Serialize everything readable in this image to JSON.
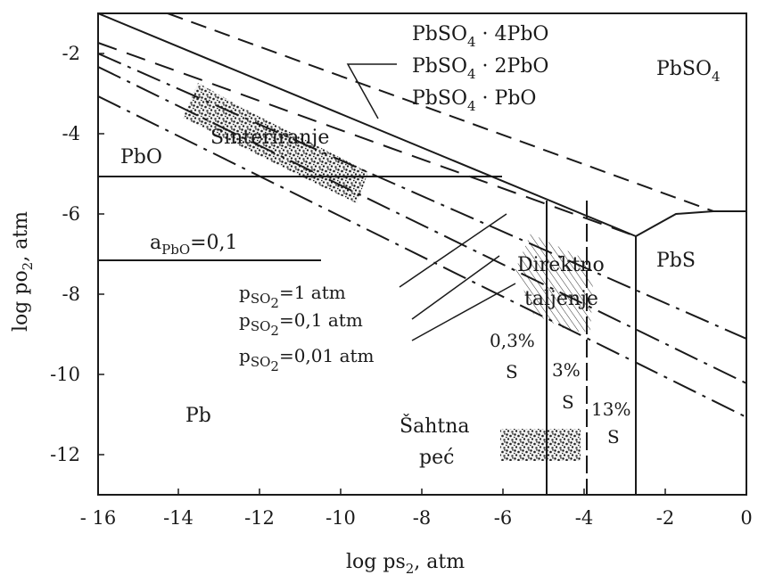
{
  "axes": {
    "x_title": "log ps",
    "x_title_sub": "2",
    "x_title_unit": ", atm",
    "y_title": "log po",
    "y_title_sub": "2",
    "y_title_unit": ", atm",
    "x_ticks": [
      "- 16",
      "-14",
      "-12",
      "-10",
      "-8",
      "-6",
      "-4",
      "-2",
      "0"
    ],
    "y_ticks": [
      "-2",
      "-4",
      "-6",
      "-8",
      "-10",
      "-12"
    ]
  },
  "phases": {
    "pbso4_4pbo": {
      "pre": "PbSO",
      "sub": "4",
      "post": " · 4PbO"
    },
    "pbso4_2pbo": {
      "pre": "PbSO",
      "sub": "4",
      "post": " · 2PbO"
    },
    "pbso4_pbo": {
      "pre": "PbSO",
      "sub": "4",
      "post": " · PbO"
    },
    "pbso4": {
      "pre": "PbSO",
      "sub": "4"
    }
  },
  "regions": {
    "pbo": "PbO",
    "pb": "Pb",
    "pbs": "PbS",
    "sinteriranje": "Sinteriranje",
    "direktno_1": "Direktno",
    "direktno_2": "taljenje",
    "sahtna_1": "Šahtna",
    "sahtna_2": "peć"
  },
  "activity": {
    "pre": "a",
    "sub": "PbO",
    "post": "=0,1"
  },
  "pso2": {
    "l1": {
      "pre": "p",
      "sub": "SO",
      "sub2": "2",
      "post": "=1 atm"
    },
    "l2": {
      "pre": "p",
      "sub": "SO",
      "sub2": "2",
      "post": "=0,1 atm"
    },
    "l3": {
      "pre": "p",
      "sub": "SO",
      "sub2": "2",
      "post": "=0,01 atm"
    }
  },
  "sulfur": {
    "s03_a": "0,3%",
    "s03_b": "S",
    "s3_a": "3%",
    "s3_b": "S",
    "s13_a": "13%",
    "s13_b": "S"
  }
}
